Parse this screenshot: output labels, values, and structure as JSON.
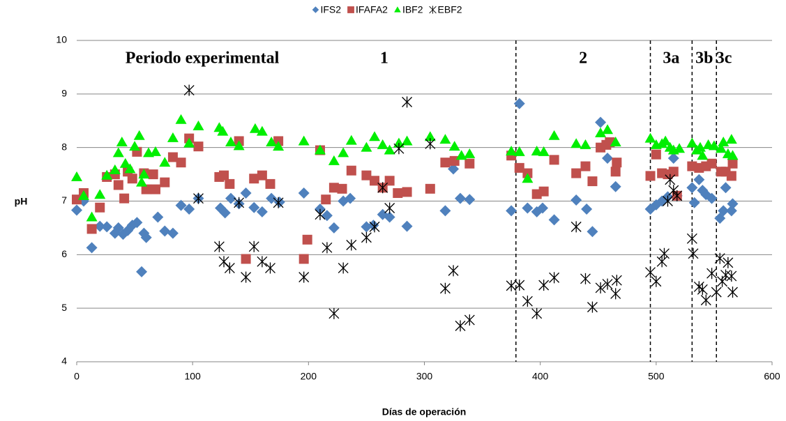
{
  "chart_data": {
    "type": "scatter",
    "x_label": "Días de operación",
    "y_label": "pH",
    "xlim": [
      0,
      600
    ],
    "xticks": [
      0,
      100,
      200,
      300,
      400,
      500,
      600
    ],
    "ylim": [
      4,
      10
    ],
    "yticks": [
      4,
      5,
      6,
      7,
      8,
      9,
      10
    ],
    "grid": true,
    "legend": "top",
    "period_heading": "Periodo experimental",
    "periods": [
      {
        "label": "1",
        "end": 379
      },
      {
        "label": "2",
        "end": 495
      },
      {
        "label": "3a",
        "end": 531
      },
      {
        "label": "3b",
        "end": 552
      },
      {
        "label": "3c"
      }
    ],
    "series": [
      {
        "name": "IFS2",
        "color": "#4f81bd",
        "marker": "diamond",
        "x": [
          0,
          6,
          13,
          20,
          26,
          33,
          36,
          40,
          44,
          48,
          52,
          56,
          58,
          60,
          70,
          76,
          83,
          90,
          97,
          105,
          124,
          128,
          133,
          140,
          146,
          153,
          160,
          168,
          175,
          196,
          210,
          216,
          222,
          230,
          236,
          250,
          256,
          264,
          270,
          285,
          318,
          325,
          331,
          339,
          375,
          382,
          389,
          397,
          402,
          412,
          431,
          440,
          445,
          452,
          458,
          465,
          495,
          500,
          505,
          510,
          515,
          518,
          531,
          533,
          537,
          540,
          543,
          548,
          555,
          558,
          560,
          565,
          566
        ],
        "values": [
          6.83,
          7.0,
          6.13,
          6.53,
          6.52,
          6.4,
          6.5,
          6.38,
          6.45,
          6.55,
          6.6,
          5.68,
          6.4,
          6.32,
          6.7,
          6.44,
          6.4,
          6.92,
          6.85,
          7.05,
          6.87,
          6.78,
          7.05,
          6.95,
          7.15,
          6.88,
          6.8,
          7.05,
          6.98,
          7.15,
          6.85,
          6.73,
          6.5,
          7.0,
          7.05,
          6.52,
          6.55,
          6.75,
          6.7,
          6.53,
          6.82,
          7.6,
          7.05,
          7.03,
          6.82,
          8.82,
          6.87,
          6.8,
          6.87,
          6.65,
          7.02,
          6.85,
          6.43,
          8.47,
          7.8,
          7.27,
          6.85,
          6.93,
          7.0,
          7.08,
          7.8,
          7.1,
          7.25,
          6.97,
          7.4,
          7.2,
          7.12,
          7.05,
          6.68,
          6.82,
          7.25,
          6.82,
          6.95
        ]
      },
      {
        "name": "IFAFA2",
        "color": "#c0504d",
        "marker": "square",
        "x": [
          0,
          6,
          13,
          20,
          26,
          33,
          36,
          41,
          44,
          48,
          52,
          58,
          60,
          66,
          68,
          76,
          83,
          90,
          97,
          105,
          123,
          127,
          132,
          140,
          146,
          153,
          160,
          167,
          174,
          196,
          199,
          210,
          215,
          222,
          229,
          237,
          250,
          257,
          264,
          270,
          277,
          285,
          305,
          318,
          326,
          339,
          375,
          382,
          389,
          397,
          403,
          412,
          431,
          439,
          445,
          452,
          457,
          460,
          465,
          466,
          495,
          500,
          505,
          510,
          515,
          518,
          531,
          537,
          543,
          548,
          556,
          560,
          565,
          566
        ],
        "values": [
          7.03,
          7.15,
          6.48,
          6.88,
          7.45,
          7.5,
          7.3,
          7.05,
          7.55,
          7.42,
          7.92,
          7.52,
          7.22,
          7.5,
          7.22,
          7.35,
          7.82,
          7.72,
          8.17,
          8.02,
          7.45,
          7.48,
          7.32,
          8.12,
          5.92,
          7.42,
          7.48,
          7.32,
          8.12,
          5.92,
          6.28,
          7.95,
          7.03,
          7.25,
          7.23,
          7.57,
          7.48,
          7.38,
          7.25,
          7.38,
          7.15,
          7.17,
          7.23,
          7.72,
          7.75,
          7.7,
          7.85,
          7.62,
          7.52,
          7.13,
          7.18,
          7.77,
          7.52,
          7.65,
          7.37,
          8.0,
          8.05,
          8.1,
          7.55,
          7.72,
          7.47,
          7.87,
          7.52,
          7.5,
          7.55,
          7.1,
          7.65,
          7.62,
          7.65,
          7.7,
          7.55,
          7.55,
          7.47,
          7.7
        ]
      },
      {
        "name": "IBF2",
        "color": "#00ee00",
        "marker": "triangle",
        "x": [
          0,
          6,
          13,
          20,
          26,
          33,
          36,
          39,
          42,
          46,
          50,
          54,
          56,
          58,
          62,
          68,
          76,
          83,
          90,
          97,
          105,
          123,
          126,
          133,
          140,
          154,
          160,
          168,
          174,
          196,
          210,
          222,
          230,
          237,
          250,
          257,
          264,
          270,
          278,
          285,
          305,
          318,
          326,
          332,
          339,
          375,
          382,
          389,
          397,
          403,
          412,
          431,
          439,
          452,
          458,
          465,
          495,
          500,
          505,
          508,
          512,
          515,
          520,
          531,
          535,
          538,
          540,
          545,
          550,
          556,
          558,
          562,
          565,
          566
        ],
        "values": [
          7.45,
          7.1,
          6.7,
          7.12,
          7.48,
          7.58,
          7.9,
          8.1,
          7.7,
          7.6,
          8.02,
          8.22,
          7.35,
          7.5,
          7.9,
          7.92,
          7.72,
          8.18,
          8.52,
          8.08,
          8.4,
          8.37,
          8.3,
          8.1,
          8.03,
          8.35,
          8.3,
          8.1,
          8.02,
          8.12,
          7.95,
          7.75,
          7.9,
          8.13,
          8.0,
          8.2,
          8.05,
          7.95,
          8.08,
          8.12,
          8.2,
          8.15,
          8.02,
          7.85,
          7.88,
          7.93,
          7.92,
          7.42,
          7.93,
          7.92,
          8.22,
          8.07,
          8.05,
          8.27,
          8.33,
          8.1,
          8.17,
          8.05,
          8.07,
          8.12,
          8.0,
          7.95,
          7.98,
          8.08,
          7.95,
          8.0,
          7.85,
          8.05,
          8.03,
          7.98,
          8.1,
          7.88,
          8.15,
          7.85
        ]
      },
      {
        "name": "EBF2",
        "color": "#000000",
        "marker": "asterisk",
        "x": [
          97,
          105,
          123,
          127,
          132,
          140,
          146,
          153,
          160,
          167,
          174,
          196,
          210,
          216,
          222,
          230,
          237,
          250,
          257,
          264,
          270,
          278,
          285,
          305,
          318,
          325,
          331,
          339,
          375,
          382,
          389,
          397,
          403,
          412,
          431,
          439,
          445,
          452,
          458,
          465,
          466,
          495,
          500,
          505,
          507,
          510,
          512,
          515,
          518,
          531,
          532,
          537,
          540,
          543,
          548,
          552,
          555,
          557,
          560,
          562,
          565,
          566
        ],
        "values": [
          9.07,
          7.05,
          6.15,
          5.87,
          5.75,
          6.97,
          5.58,
          6.15,
          5.87,
          5.75,
          6.97,
          5.58,
          6.75,
          6.13,
          4.9,
          5.75,
          6.18,
          6.32,
          6.52,
          7.25,
          6.87,
          7.98,
          8.85,
          8.07,
          5.37,
          5.7,
          4.67,
          4.78,
          5.42,
          5.43,
          5.13,
          4.9,
          5.43,
          5.57,
          6.52,
          5.55,
          5.02,
          5.38,
          5.45,
          5.27,
          5.52,
          5.67,
          5.5,
          5.87,
          6.02,
          7.0,
          7.4,
          7.2,
          7.1,
          6.3,
          6.02,
          5.4,
          5.35,
          5.15,
          5.65,
          5.3,
          5.93,
          5.5,
          5.62,
          5.85,
          5.6,
          5.3
        ]
      }
    ]
  }
}
